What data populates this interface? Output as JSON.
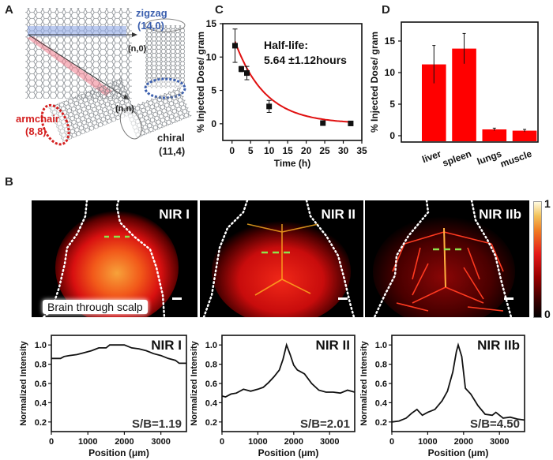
{
  "figure": {
    "panel_letters": {
      "A": "A",
      "B": "B",
      "C": "C",
      "D": "D"
    }
  },
  "panel_a": {
    "zigzag_label": "zigzag",
    "zigzag_index": "(14,0)",
    "armchair_label": "armchair",
    "armchair_index": "(8,8)",
    "chiral_label": "chiral",
    "chiral_index": "(11,4)",
    "vector_n0": "(n,0)",
    "vector_nn": "(n,n)",
    "colors": {
      "zigzag": "#3b5fae",
      "armchair": "#d42020"
    }
  },
  "panel_b": {
    "images": [
      {
        "label": "NIR I",
        "caption": "Brain through scalp"
      },
      {
        "label": "NIR II",
        "caption": ""
      },
      {
        "label": "NIR IIb",
        "caption": ""
      }
    ],
    "colorbar": {
      "max_label": "1",
      "min_label": "0"
    }
  },
  "chart_data": [
    {
      "id": "C",
      "type": "scatter",
      "title": "",
      "annotation": [
        "Half-life:",
        "5.64 ±1.12hours"
      ],
      "xlabel": "Time (h)",
      "ylabel": "% Injected Dose/ gram",
      "xlim": [
        -2.5,
        35
      ],
      "ylim": [
        -2.5,
        15
      ],
      "xticks": [
        0,
        5,
        10,
        15,
        20,
        25,
        30,
        35
      ],
      "yticks": [
        0,
        5,
        10,
        15
      ],
      "points": [
        {
          "x": 0.8,
          "y": 11.7,
          "err": 2.5
        },
        {
          "x": 2.5,
          "y": 8.2,
          "err": 0.4
        },
        {
          "x": 4,
          "y": 7.6,
          "err": 1.0
        },
        {
          "x": 10,
          "y": 2.6,
          "err": 0.9
        },
        {
          "x": 24.5,
          "y": 0.1,
          "err": 0.1
        },
        {
          "x": 32,
          "y": 0.05,
          "err": 0.1
        }
      ],
      "fit": {
        "type": "exponential_decay",
        "A": 13.6,
        "half_life": 5.64,
        "color": "#e01010"
      }
    },
    {
      "id": "D",
      "type": "bar",
      "title": "",
      "xlabel": "",
      "ylabel": "% Injected Dose/ gram",
      "ylim": [
        -1,
        18
      ],
      "yticks": [
        0,
        5,
        10,
        15
      ],
      "categories": [
        "liver",
        "spleen",
        "lungs",
        "muscle"
      ],
      "values": [
        11.3,
        13.8,
        1.0,
        0.8
      ],
      "errors": [
        3.0,
        2.4,
        0.2,
        0.2
      ],
      "color": "#ff0000"
    },
    {
      "id": "B-NIR-I",
      "type": "line",
      "label": "NIR I",
      "annotation": "S/B=1.19",
      "xlabel": "Position (μm)",
      "ylabel": "Normalized Intensity",
      "xlim": [
        0,
        3700
      ],
      "ylim": [
        0.1,
        1.1
      ],
      "xticks": [
        0,
        1000,
        2000,
        3000
      ],
      "yticks": [
        0.2,
        0.4,
        0.6,
        0.8,
        1.0
      ],
      "x": [
        0,
        250,
        350,
        500,
        700,
        900,
        1100,
        1300,
        1500,
        1600,
        1800,
        2000,
        2200,
        2400,
        2600,
        2800,
        3000,
        3200,
        3400,
        3500,
        3700
      ],
      "y": [
        0.86,
        0.86,
        0.88,
        0.89,
        0.9,
        0.92,
        0.94,
        0.97,
        0.97,
        1.0,
        1.0,
        1.0,
        0.97,
        0.96,
        0.94,
        0.91,
        0.89,
        0.86,
        0.84,
        0.81,
        0.81
      ]
    },
    {
      "id": "B-NIR-II",
      "type": "line",
      "label": "NIR II",
      "annotation": "S/B=2.01",
      "xlabel": "Position (μm)",
      "ylabel": "Normalized Intensity",
      "xlim": [
        0,
        3700
      ],
      "ylim": [
        0.1,
        1.1
      ],
      "xticks": [
        0,
        1000,
        2000,
        3000
      ],
      "yticks": [
        0.2,
        0.4,
        0.6,
        0.8,
        1.0
      ],
      "x": [
        0,
        100,
        250,
        400,
        600,
        800,
        1000,
        1150,
        1300,
        1450,
        1600,
        1700,
        1800,
        1900,
        2000,
        2100,
        2300,
        2500,
        2700,
        2900,
        3100,
        3300,
        3500,
        3700
      ],
      "y": [
        0.47,
        0.46,
        0.49,
        0.5,
        0.54,
        0.52,
        0.54,
        0.56,
        0.61,
        0.67,
        0.74,
        0.85,
        1.0,
        0.9,
        0.79,
        0.74,
        0.7,
        0.6,
        0.53,
        0.51,
        0.51,
        0.5,
        0.53,
        0.51
      ]
    },
    {
      "id": "B-NIR-IIb",
      "type": "line",
      "label": "NIR IIb",
      "annotation": "S/B=4.50",
      "xlabel": "Position (μm)",
      "ylabel": "Normalized Intensity",
      "xlim": [
        0,
        3700
      ],
      "ylim": [
        0.1,
        1.1
      ],
      "xticks": [
        0,
        1000,
        2000,
        3000
      ],
      "yticks": [
        0.2,
        0.4,
        0.6,
        0.8,
        1.0
      ],
      "x": [
        0,
        200,
        400,
        550,
        700,
        850,
        1000,
        1200,
        1400,
        1550,
        1700,
        1800,
        1850,
        1950,
        2050,
        2200,
        2400,
        2600,
        2800,
        2900,
        3100,
        3300,
        3500,
        3700
      ],
      "y": [
        0.2,
        0.21,
        0.24,
        0.29,
        0.33,
        0.27,
        0.3,
        0.33,
        0.42,
        0.52,
        0.72,
        0.93,
        1.0,
        0.88,
        0.55,
        0.49,
        0.37,
        0.28,
        0.27,
        0.3,
        0.24,
        0.25,
        0.23,
        0.22
      ]
    }
  ]
}
